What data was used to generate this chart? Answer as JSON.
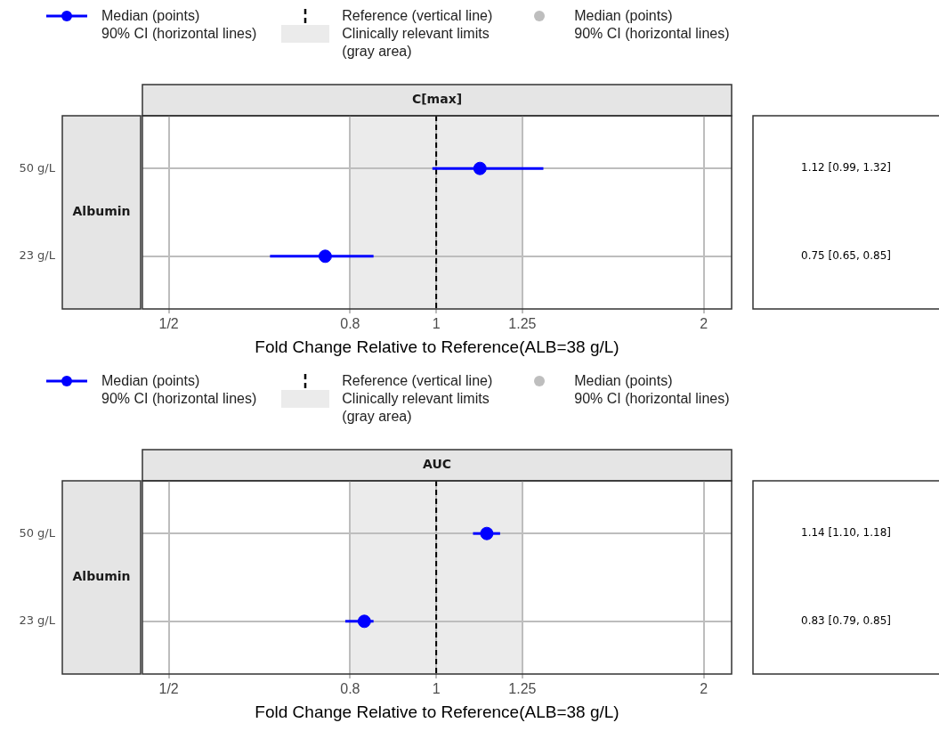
{
  "chart_data": [
    {
      "type": "scatter",
      "title": "C[max]",
      "ylabel": "Albumin",
      "xlabel": "Fold Change Relative to Reference(ALB=38 g/L)",
      "orientation": "horizontal",
      "categories": [
        "50 g/L",
        "23 g/L"
      ],
      "series": [
        {
          "name": "Median (points)\n90% CI (horizontal lines)",
          "color": "#0000ff",
          "values": [
            1.12,
            0.75
          ],
          "errors": [
            [
              0.99,
              1.32
            ],
            [
              0.65,
              0.85
            ]
          ],
          "value_labels": [
            "1.12 [0.99, 1.32]",
            "0.75 [0.65, 0.85]"
          ]
        },
        {
          "name": "Median (points)\n90% CI (horizontal lines)",
          "color": "#bebebe",
          "values": [
            null,
            null
          ]
        }
      ],
      "ref_lines": [
        {
          "axis": "x",
          "value": 1,
          "label": "Reference (vertical line)",
          "color": "#000000",
          "line_style": "dashed"
        }
      ],
      "bands": [
        {
          "axis": "x",
          "from": 0.8,
          "to": 1.25,
          "label": "Clinically relevant limits\n(gray area)",
          "color": "#ebebeb"
        }
      ],
      "log": "x",
      "xlim": [
        0.467,
        2.15
      ],
      "xticks": [
        {
          "value": 0.5,
          "label": "1/2"
        },
        0.8,
        1,
        1.25,
        2
      ],
      "grid": true,
      "legend": "top",
      "marker": "circle"
    },
    {
      "type": "scatter",
      "title": "AUC",
      "ylabel": "Albumin",
      "xlabel": "Fold Change Relative to Reference(ALB=38 g/L)",
      "orientation": "horizontal",
      "categories": [
        "50 g/L",
        "23 g/L"
      ],
      "series": [
        {
          "name": "Median (points)\n90% CI (horizontal lines)",
          "color": "#0000ff",
          "values": [
            1.14,
            0.83
          ],
          "errors": [
            [
              1.1,
              1.18
            ],
            [
              0.79,
              0.85
            ]
          ],
          "value_labels": [
            "1.14 [1.10, 1.18]",
            "0.83 [0.79, 0.85]"
          ]
        },
        {
          "name": "Median (points)\n90% CI (horizontal lines)",
          "color": "#bebebe",
          "values": [
            null,
            null
          ]
        }
      ],
      "ref_lines": [
        {
          "axis": "x",
          "value": 1,
          "label": "Reference (vertical line)",
          "color": "#000000",
          "line_style": "dashed"
        }
      ],
      "bands": [
        {
          "axis": "x",
          "from": 0.8,
          "to": 1.25,
          "label": "Clinically relevant limits\n(gray area)",
          "color": "#ebebeb"
        }
      ],
      "log": "x",
      "xlim": [
        0.467,
        2.15
      ],
      "xticks": [
        {
          "value": 0.5,
          "label": "1/2"
        },
        0.8,
        1,
        1.25,
        2
      ],
      "grid": true,
      "legend": "top",
      "marker": "circle"
    }
  ]
}
